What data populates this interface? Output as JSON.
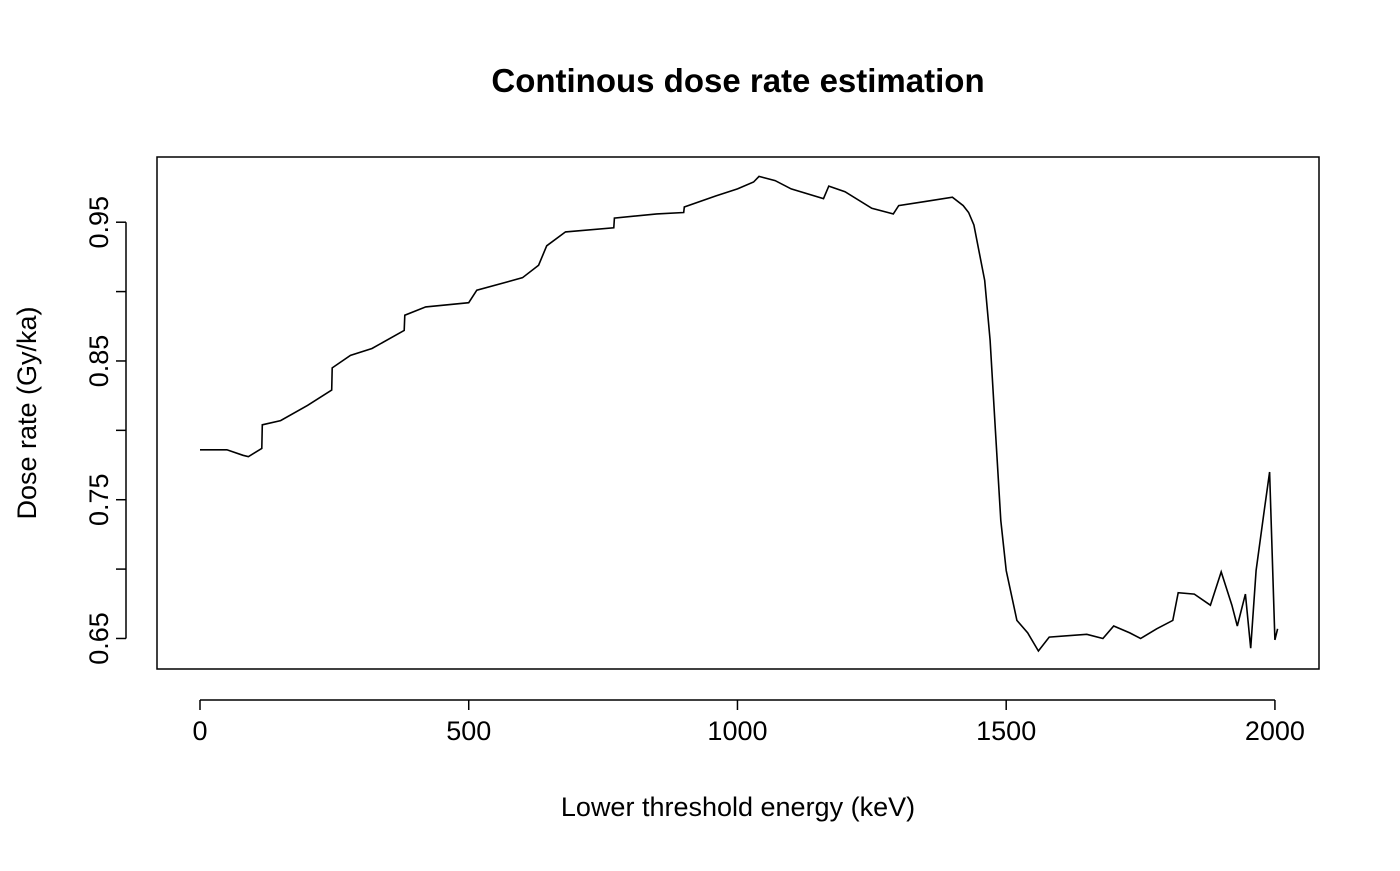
{
  "chart_data": {
    "type": "line",
    "title": "Continous dose rate estimation",
    "xlabel": "Lower threshold energy (keV)",
    "ylabel": "Dose rate (Gy/ka)",
    "xlim": [
      -80,
      2082
    ],
    "ylim": [
      0.628,
      0.997
    ],
    "xticks": [
      0,
      500,
      1000,
      1500,
      2000
    ],
    "yticks": [
      0.65,
      0.75,
      0.85,
      0.95
    ],
    "yticks_unlabeled": [
      0.7,
      0.8,
      0.9
    ],
    "series": [
      {
        "color": "#000000",
        "x": [
          0,
          50,
          80,
          90,
          115,
          116,
          150,
          200,
          245,
          246,
          280,
          320,
          380,
          381,
          420,
          500,
          515,
          600,
          630,
          645,
          680,
          770,
          771,
          850,
          900,
          901,
          960,
          1000,
          1030,
          1040,
          1070,
          1100,
          1160,
          1170,
          1200,
          1250,
          1290,
          1300,
          1350,
          1400,
          1420,
          1430,
          1440,
          1460,
          1470,
          1480,
          1490,
          1500,
          1520,
          1540,
          1560,
          1580,
          1650,
          1680,
          1700,
          1730,
          1750,
          1780,
          1810,
          1820,
          1850,
          1880,
          1900,
          1920,
          1930,
          1945,
          1955,
          1965,
          1980,
          1990,
          2000,
          2005
        ],
        "values": [
          0.786,
          0.786,
          0.782,
          0.781,
          0.787,
          0.804,
          0.807,
          0.818,
          0.829,
          0.845,
          0.854,
          0.859,
          0.872,
          0.883,
          0.889,
          0.892,
          0.901,
          0.91,
          0.919,
          0.933,
          0.943,
          0.946,
          0.953,
          0.956,
          0.957,
          0.961,
          0.969,
          0.974,
          0.979,
          0.983,
          0.98,
          0.974,
          0.967,
          0.976,
          0.972,
          0.96,
          0.956,
          0.962,
          0.965,
          0.968,
          0.962,
          0.957,
          0.948,
          0.908,
          0.865,
          0.8,
          0.735,
          0.699,
          0.663,
          0.654,
          0.641,
          0.651,
          0.653,
          0.65,
          0.659,
          0.654,
          0.65,
          0.657,
          0.663,
          0.683,
          0.682,
          0.674,
          0.698,
          0.674,
          0.659,
          0.682,
          0.643,
          0.699,
          0.742,
          0.77,
          0.649,
          0.657
        ]
      }
    ]
  }
}
